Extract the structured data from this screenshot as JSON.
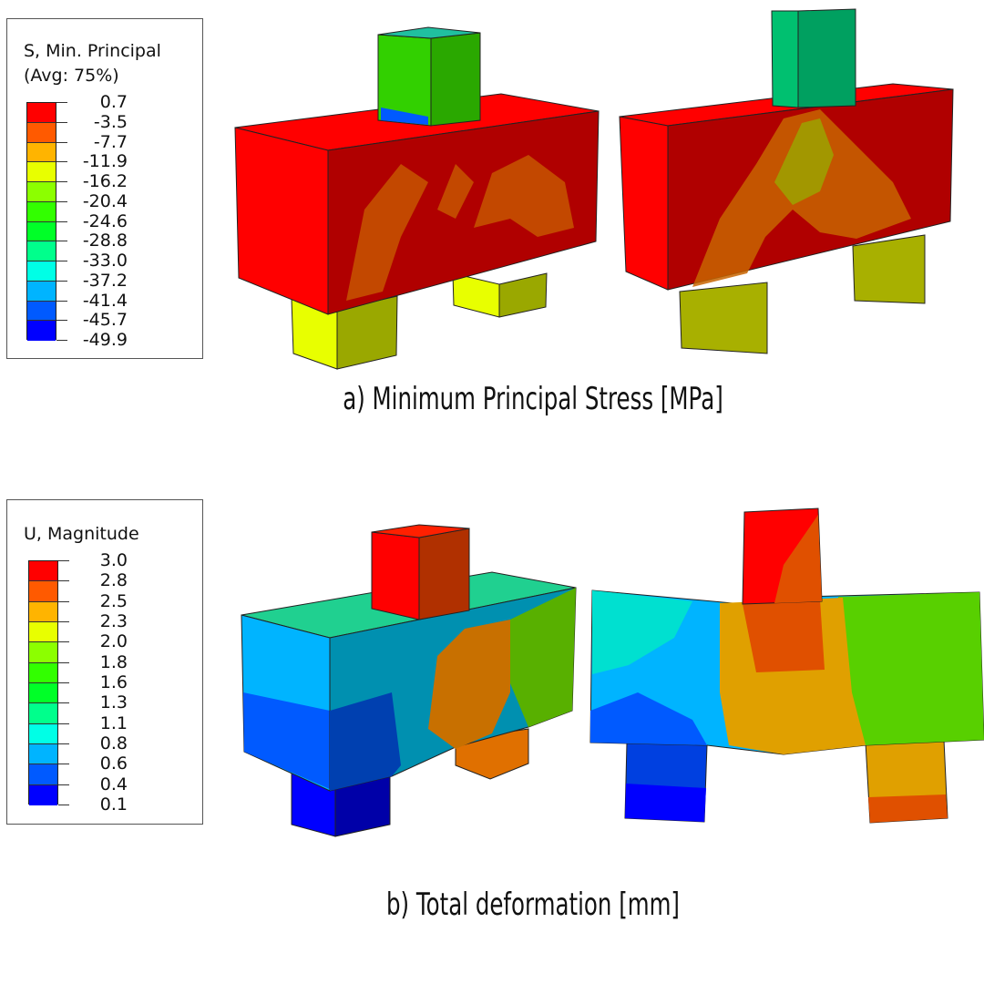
{
  "panel_a": {
    "legend_title_1": "S, Min. Principal",
    "legend_title_2": "(Avg: 75%)",
    "legend_values": [
      "0.7",
      "-3.5",
      "-7.7",
      "-11.9",
      "-16.2",
      "-20.4",
      "-24.6",
      "-28.8",
      "-33.0",
      "-37.2",
      "-41.4",
      "-45.7",
      "-49.9"
    ],
    "caption": "a) Minimum Principal Stress [MPa]"
  },
  "panel_b": {
    "legend_title_1": "U, Magnitude",
    "legend_values": [
      "3.0",
      "2.8",
      "2.5",
      "2.3",
      "2.0",
      "1.8",
      "1.6",
      "1.3",
      "1.1",
      "0.8",
      "0.6",
      "0.4",
      "0.1"
    ],
    "caption": "b) Total deformation [mm]"
  },
  "colormap": [
    "#ff0000",
    "#ff5a00",
    "#ffb400",
    "#e8ff00",
    "#8cff00",
    "#32ff00",
    "#00ff28",
    "#00ff8c",
    "#00ffe6",
    "#00b4ff",
    "#005aff",
    "#0000ff"
  ]
}
